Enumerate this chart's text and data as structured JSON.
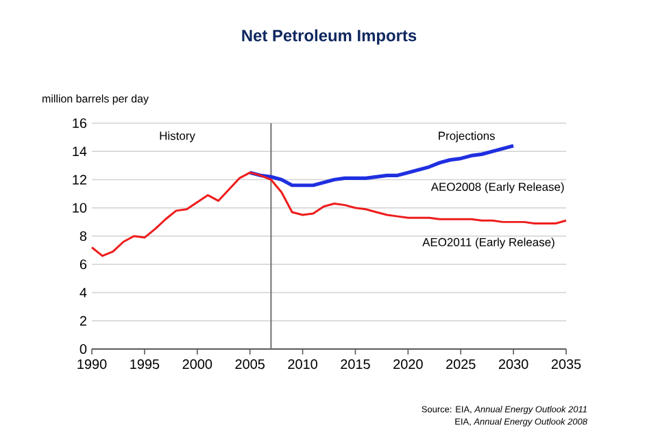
{
  "chart_data": {
    "type": "line",
    "title": "Net Petroleum Imports",
    "ylabel": "million barrels per day",
    "xlim": [
      1990,
      2035
    ],
    "xticks": [
      1990,
      1995,
      2000,
      2005,
      2010,
      2015,
      2020,
      2025,
      2030,
      2035
    ],
    "ylim": [
      0,
      16
    ],
    "yticks": [
      0,
      2,
      4,
      6,
      8,
      10,
      12,
      14,
      16
    ],
    "grid": "y",
    "legend": false,
    "ref_lines": [
      {
        "axis": "x",
        "value": 2007,
        "color": "#707070"
      }
    ],
    "series": [
      {
        "name": "AEO2008 (Early Release)",
        "color": "#1f2fe0",
        "x": [
          2005,
          2006,
          2007,
          2008,
          2009,
          2010,
          2011,
          2012,
          2013,
          2014,
          2015,
          2016,
          2017,
          2018,
          2019,
          2020,
          2021,
          2022,
          2023,
          2024,
          2025,
          2026,
          2027,
          2028,
          2029,
          2030
        ],
        "values": [
          12.5,
          12.3,
          12.2,
          12.0,
          11.6,
          11.6,
          11.6,
          11.8,
          12.0,
          12.1,
          12.1,
          12.1,
          12.2,
          12.3,
          12.3,
          12.5,
          12.7,
          12.9,
          13.2,
          13.4,
          13.5,
          13.7,
          13.8,
          14.0,
          14.2,
          14.4
        ]
      },
      {
        "name": "AEO2011 (Early Release)",
        "color": "#ee1c1c",
        "x": [
          1990,
          1991,
          1992,
          1993,
          1994,
          1995,
          1996,
          1997,
          1998,
          1999,
          2000,
          2001,
          2002,
          2003,
          2004,
          2005,
          2006,
          2007,
          2008,
          2009,
          2010,
          2011,
          2012,
          2013,
          2014,
          2015,
          2016,
          2017,
          2018,
          2019,
          2020,
          2021,
          2022,
          2023,
          2024,
          2025,
          2026,
          2027,
          2028,
          2029,
          2030,
          2031,
          2032,
          2033,
          2034,
          2035
        ],
        "values": [
          7.2,
          6.6,
          6.9,
          7.6,
          8.0,
          7.9,
          8.5,
          9.2,
          9.8,
          9.9,
          10.4,
          10.9,
          10.5,
          11.3,
          12.1,
          12.5,
          12.3,
          12.0,
          11.1,
          9.7,
          9.5,
          9.6,
          10.1,
          10.3,
          10.2,
          10.0,
          9.9,
          9.7,
          9.5,
          9.4,
          9.3,
          9.3,
          9.3,
          9.2,
          9.2,
          9.2,
          9.2,
          9.1,
          9.1,
          9.0,
          9.0,
          9.0,
          8.9,
          8.9,
          8.9,
          9.1
        ]
      }
    ],
    "annotations": [
      "History",
      "Projections",
      "Source:  EIA, *Annual Energy Outlook 2011*",
      "EIA, *Annual Energy Outlook 2008*"
    ]
  }
}
